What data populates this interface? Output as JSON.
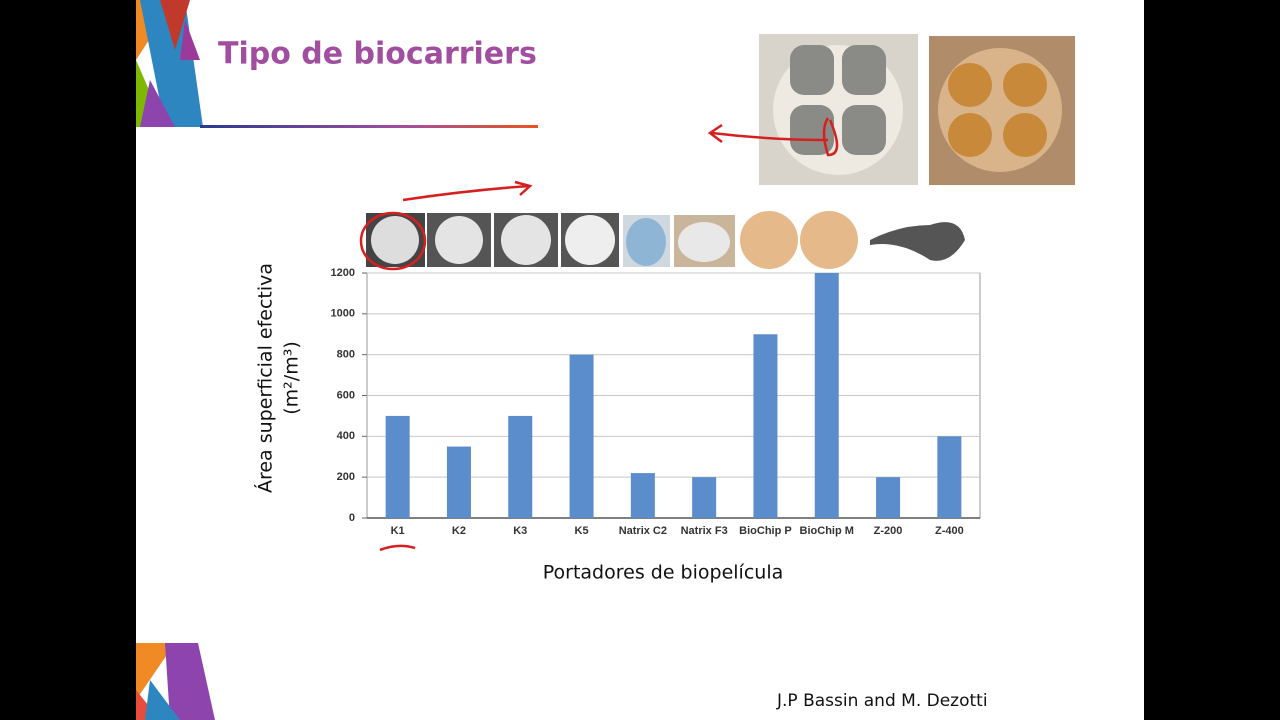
{
  "slide": {
    "title": "Tipo de biocarriers",
    "credit": "J.P Bassin and M. Dezotti"
  },
  "chart_data": {
    "type": "bar",
    "categories": [
      "K1",
      "K2",
      "K3",
      "K5",
      "Natrix C2",
      "Natrix F3",
      "BioChip P",
      "BioChip M",
      "Z-200",
      "Z-400"
    ],
    "values": [
      500,
      350,
      500,
      800,
      220,
      200,
      900,
      1200,
      200,
      400
    ],
    "color": "#5b8ccb",
    "ylim": [
      0,
      1200
    ],
    "yticks": [
      0,
      200,
      400,
      600,
      800,
      1000,
      1200
    ],
    "grid": true,
    "ylabel": [
      "Área superficial efectiva",
      "(m²/m³)"
    ],
    "xlabel": "Portadores de biopelícula"
  }
}
